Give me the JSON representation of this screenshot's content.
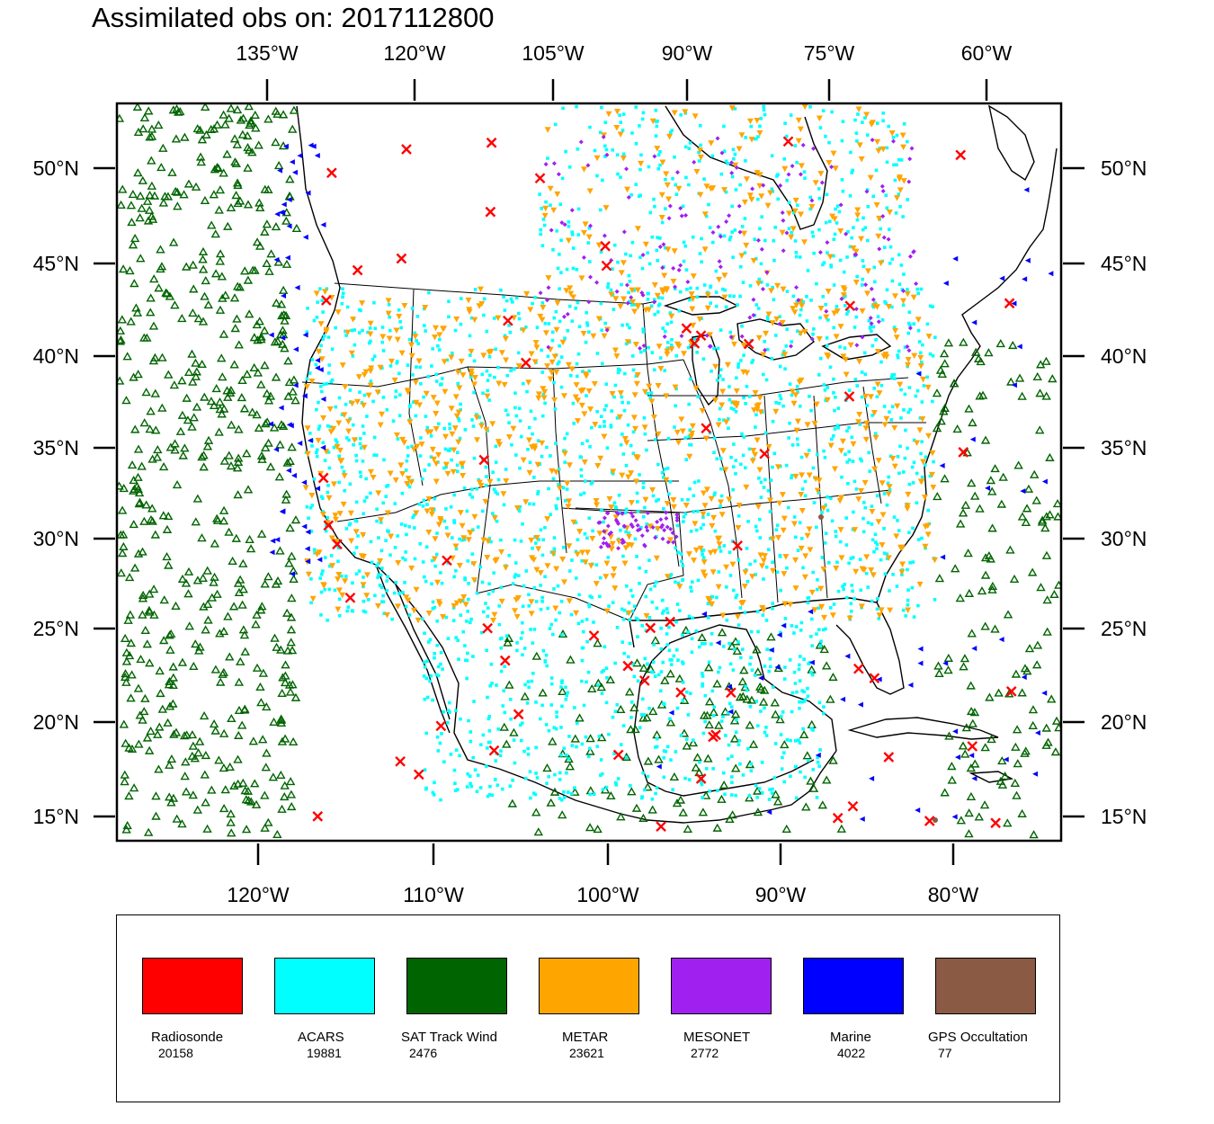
{
  "title": "Assimilated obs on: 2017112800",
  "map": {
    "top_axis_labels": [
      "135°W",
      "120°W",
      "105°W",
      "90°W",
      "75°W",
      "60°W"
    ],
    "bottom_axis_labels": [
      "120°W",
      "110°W",
      "100°W",
      "90°W",
      "80°W"
    ],
    "lat_labels": [
      "50°N",
      "45°N",
      "40°N",
      "35°N",
      "30°N",
      "25°N",
      "20°N",
      "15°N"
    ]
  },
  "legend": [
    {
      "name": "Radiosonde",
      "count": "20158",
      "color": "#ff0000",
      "marker": "x-mark"
    },
    {
      "name": "ACARS",
      "count": "19881",
      "color": "#00ffff",
      "marker": "dot"
    },
    {
      "name": "SAT Track Wind",
      "count": "2476",
      "color": "#006400",
      "marker": "triangle-up"
    },
    {
      "name": "METAR",
      "count": "23621",
      "color": "#ffa500",
      "marker": "triangle-down"
    },
    {
      "name": "MESONET",
      "count": "2772",
      "color": "#a020f0",
      "marker": "diamond"
    },
    {
      "name": "Marine",
      "count": "4022",
      "color": "#0000ff",
      "marker": "triangle-left"
    },
    {
      "name": "GPS Occultation",
      "count": "77",
      "color": "#8b5a44",
      "marker": "circle"
    }
  ]
}
